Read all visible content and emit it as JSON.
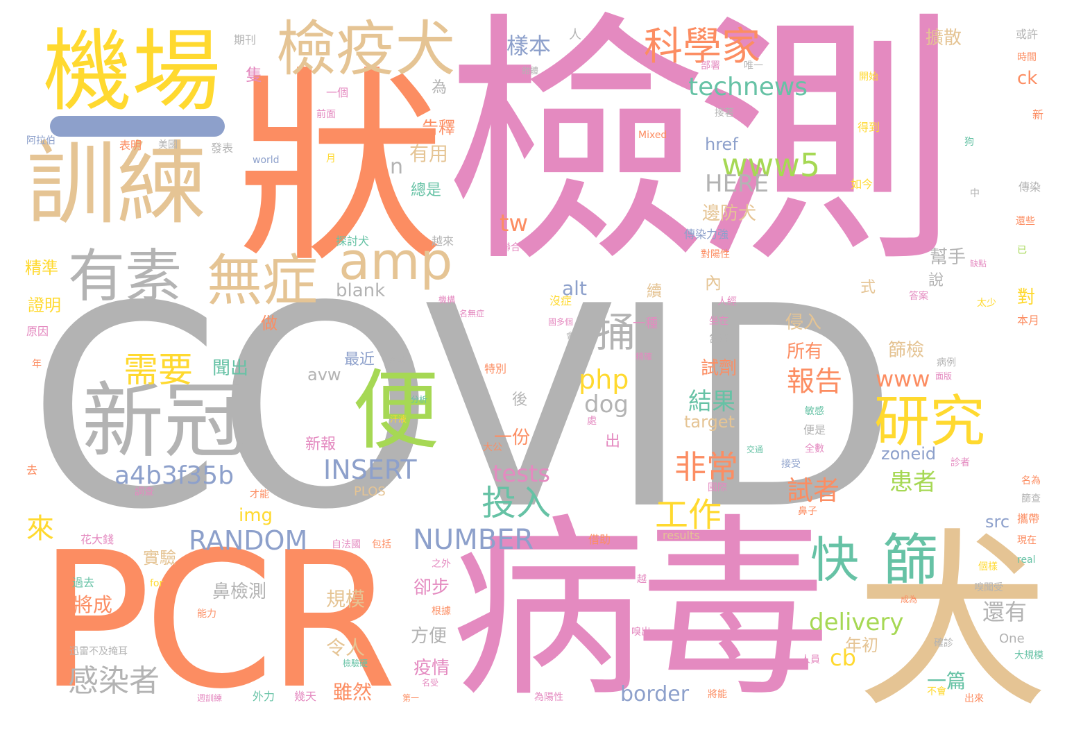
{
  "palette": {
    "pink": "#e48ac0",
    "gray": "#b3b3b3",
    "orange": "#fc8d62",
    "yellow": "#ffd92f",
    "tan": "#e5c494",
    "green": "#a6d854",
    "teal": "#66c2a5",
    "blue": "#8da0cb"
  },
  "dash_color": "#8da0cb",
  "words": {
    "covid": "COVID",
    "jiance": "檢測",
    "bingdu": "病毒",
    "pcr": "PCR",
    "quan": "犬",
    "zhuang": "狀",
    "jichang": "機場",
    "xunlian": "訓練",
    "jianyiquan": "檢疫犬",
    "xinguan": "新冠",
    "bian": "便",
    "kexuejia": "科學家",
    "yansu": "有素",
    "wuzheng": "無症",
    "amp": "amp",
    "yanjiu": "研究",
    "kuai": "快",
    "shai": "篩",
    "tong": "捅",
    "technews": "technews",
    "www5": "www5",
    "a4b": "a4b3f35b",
    "random": "RANDOM",
    "number": "NUMBER",
    "insert": "INSERT",
    "xuyao": "需要",
    "fei": "非常",
    "touru": "投入",
    "gongzuo": "工作",
    "ganran": "感染者",
    "php": "php",
    "www": "www",
    "dog": "dog",
    "delivery": "delivery",
    "tests": "tests",
    "zoneid": "zoneid",
    "baogao": "報告",
    "jieguo": "結果",
    "huanzhe": "患者",
    "shizhe": "試者",
    "lai": "來",
    "yangben": "樣本",
    "shiyong": "有用",
    "gaoshi": "告釋",
    "here": "HERE",
    "tw": "tw",
    "n": "n",
    "blank": "blank",
    "avw": "avw",
    "alt": "alt",
    "img": "img",
    "border": "border",
    "target": "target",
    "href": "href",
    "cb": "cb",
    "src": "src",
    "ck": "ck",
    "plos": "PLOS",
    "results": "results",
    "one": "One",
    "mixed": "Mixed",
    "world": "world",
    "for": "for",
    "real": "real",
    "kuosan": "擴散",
    "bianfang": "邊防犬",
    "shaijian": "篩檢",
    "shiji": "試劑",
    "suoyou": "所有",
    "qinru": "侵入",
    "haiyou": "還有",
    "bangshou": "幫手",
    "guimo": "規模",
    "bijiance": "鼻檢測",
    "shiyan": "實驗",
    "jiangcheng": "將成",
    "quebu": "卻步",
    "yiqing": "疫情",
    "suiran": "雖然",
    "fangbian": "方便",
    "lingren": "令人",
    "yipian": "一篇",
    "nianchu": "年初",
    "zuijin": "最近",
    "wenchu": "聞出",
    "xinbao": "新報",
    "yifen": "一份",
    "hou": "後",
    "chu": "出",
    "zuo": "做",
    "zhengming": "證明",
    "jingzhun": "精準",
    "shuo": "說",
    "shi": "式",
    "xu": "續",
    "dui": "對",
    "nei": "內",
    "zhi": "隻",
    "wei": "為",
    "ren": "人",
    "zongshi": "總是",
    "qikan": "期刊",
    "bumen": "部署",
    "weiyi": "唯一",
    "huoxu": "或許",
    "shijian": "時間",
    "kaishi": "開始",
    "yige": "一個",
    "qianmian": "前面",
    "biaoming": "表明",
    "meiguo": "美國",
    "fabiao": "發表",
    "alabo": "阿拉伯",
    "yue": "月",
    "yuanyin": "原因",
    "nian": "年",
    "qu": "去",
    "xin": "新",
    "gou": "狗",
    "zhong": "中",
    "chuanran": "傳染",
    "huanxie": "還些",
    "yi": "已",
    "quedian": "缺點",
    "dedao": "得到",
    "rujin": "如今",
    "chuanranli": "傳染力強",
    "lianhe": "聯合",
    "duiyang": "對陽性",
    "tantao": "探討犬",
    "yuelai": "越來",
    "meizheng": "沒症",
    "gezhong": "國多個",
    "hui": "會",
    "yizhong": "一種",
    "zuozai": "坐在",
    "dangran": "當然",
    "renjing": "人經",
    "daan": "答案",
    "taishao": "太少",
    "benyue": "本月",
    "bingli": "病例",
    "mianban": "面版",
    "dazhong": "大公",
    "texie": "特別",
    "fenxi": "分析",
    "hanye": "汗液",
    "chu2": "處",
    "jiaotong": "交通",
    "minggan": "敏感",
    "bianshi": "便是",
    "quanshu": "全數",
    "jieshou": "接受",
    "zhenzhe": "診者",
    "guoji": "國際",
    "bizi": "鼻子",
    "xiedai": "攜帶",
    "xianzai": "現在",
    "geyang": "個樣",
    "wenshou": "嗅聞受",
    "chengwei": "成為",
    "buhui": "不會",
    "chulai": "出來",
    "dagui": "大規模",
    "quezhen": "確診",
    "renyuan": "人員",
    "jiangneng": "將能",
    "weiyang": "為陽性",
    "dier": "第一",
    "mingshou": "名受",
    "jitian": "幾天",
    "waili": "外力",
    "jianyan": "檢驗硬",
    "zhouxun": "週訓練",
    "genju": "根據",
    "nengli": "能力",
    "guoqu": "過去",
    "huadajia": "花大錢",
    "diaocha": "調查",
    "caineng": "才能",
    "zifa": "自法國",
    "baokuo": "包括",
    "zhiwai": "之外",
    "jiezhu": "借助",
    "yue2": "越",
    "xuanlei": "迅雷不及掩耳",
    "jiqing": "機構",
    "mingwu": "名無症",
    "jingdao": "精確",
    "gengshi": "更是",
    "mingwei": "名為",
    "shaicha": "篩查",
    "xiuchu": "嗅出",
    "jiuzhe": "接著",
    "jiti": "鉗體"
  }
}
